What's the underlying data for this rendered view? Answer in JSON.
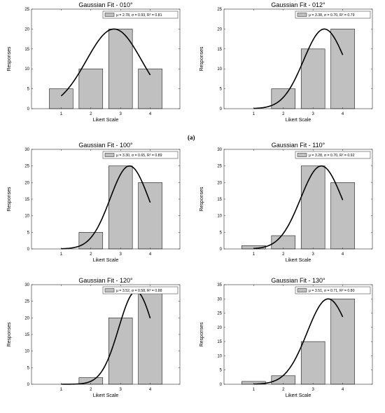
{
  "subfigure_label": "(a)",
  "chart_data": [
    {
      "type": "bar",
      "title": "Gaussian Fit - 010°",
      "xlabel": "Likert Scale",
      "ylabel": "Responses",
      "categories": [
        "1",
        "2",
        "3",
        "4"
      ],
      "values": [
        5,
        10,
        20,
        10
      ],
      "ylim": [
        0,
        25
      ],
      "yticks": [
        "0",
        "5",
        "10",
        "15",
        "20",
        "25"
      ],
      "xlim": [
        0,
        5
      ],
      "legend": "μ = 2.78, σ = 0.93, R² = 0.81",
      "legend_position": "top-right",
      "fit": {
        "mu": 2.78,
        "sigma": 0.93,
        "peak": 20,
        "x_range": [
          1,
          4
        ]
      },
      "bar_color": "#c0c0c0",
      "curve_color": "#000000"
    },
    {
      "type": "bar",
      "title": "Gaussian Fit - 012°",
      "xlabel": "Likert Scale",
      "ylabel": "Responses",
      "categories": [
        "1",
        "2",
        "3",
        "4"
      ],
      "values": [
        0,
        5,
        15,
        20
      ],
      "ylim": [
        0,
        25
      ],
      "yticks": [
        "0",
        "5",
        "10",
        "15",
        "20",
        "25"
      ],
      "xlim": [
        0,
        5
      ],
      "legend": "μ = 3.38, σ = 0.70, R² = 0.79",
      "legend_position": "top-right",
      "fit": {
        "mu": 3.38,
        "sigma": 0.7,
        "peak": 20,
        "x_range": [
          1,
          4
        ]
      },
      "bar_color": "#c0c0c0",
      "curve_color": "#000000"
    },
    {
      "type": "bar",
      "title": "Gaussian Fit - 100°",
      "xlabel": "Likert Scale",
      "ylabel": "Responses",
      "categories": [
        "1",
        "2",
        "3",
        "4"
      ],
      "values": [
        0,
        5,
        25,
        20
      ],
      "ylim": [
        0,
        30
      ],
      "yticks": [
        "0",
        "5",
        "10",
        "15",
        "20",
        "25",
        "30"
      ],
      "xlim": [
        0,
        5
      ],
      "legend": "μ = 3.30, σ = 0.65, R² = 0.89",
      "legend_position": "top-right",
      "fit": {
        "mu": 3.3,
        "sigma": 0.65,
        "peak": 25,
        "x_range": [
          1,
          4
        ]
      },
      "bar_color": "#c0c0c0",
      "curve_color": "#000000"
    },
    {
      "type": "bar",
      "title": "Gaussian Fit - 110°",
      "xlabel": "Likert Scale",
      "ylabel": "Responses",
      "categories": [
        "1",
        "2",
        "3",
        "4"
      ],
      "values": [
        1,
        4,
        25,
        20
      ],
      "ylim": [
        0,
        30
      ],
      "yticks": [
        "0",
        "5",
        "10",
        "15",
        "20",
        "25",
        "30"
      ],
      "xlim": [
        0,
        5
      ],
      "legend": "μ = 3.28, σ = 0.70, R² = 0.92",
      "legend_position": "top-right",
      "fit": {
        "mu": 3.28,
        "sigma": 0.7,
        "peak": 25,
        "x_range": [
          1,
          4
        ]
      },
      "bar_color": "#c0c0c0",
      "curve_color": "#000000"
    },
    {
      "type": "bar",
      "title": "Gaussian Fit - 120°",
      "xlabel": "Likert Scale",
      "ylabel": "Responses",
      "categories": [
        "1",
        "2",
        "3",
        "4"
      ],
      "values": [
        0,
        2,
        20,
        28
      ],
      "ylim": [
        0,
        30
      ],
      "yticks": [
        "0",
        "5",
        "10",
        "15",
        "20",
        "25",
        "30"
      ],
      "xlim": [
        0,
        5
      ],
      "legend": "μ = 3.52, σ = 0.58, R² = 0.88",
      "legend_position": "top-right",
      "fit": {
        "mu": 3.52,
        "sigma": 0.58,
        "peak": 28,
        "x_range": [
          1,
          4
        ]
      },
      "bar_color": "#c0c0c0",
      "curve_color": "#000000"
    },
    {
      "type": "bar",
      "title": "Gaussian Fit - 130°",
      "xlabel": "Likert Scale",
      "ylabel": "Responses",
      "categories": [
        "1",
        "2",
        "3",
        "4"
      ],
      "values": [
        1,
        3,
        15,
        30
      ],
      "ylim": [
        0,
        35
      ],
      "yticks": [
        "0",
        "5",
        "10",
        "15",
        "20",
        "25",
        "30",
        "35"
      ],
      "xlim": [
        0,
        5
      ],
      "legend": "μ = 3.51, σ = 0.71, R² = 0.80",
      "legend_position": "top-right",
      "fit": {
        "mu": 3.51,
        "sigma": 0.71,
        "peak": 30,
        "x_range": [
          1,
          4
        ]
      },
      "bar_color": "#c0c0c0",
      "curve_color": "#000000"
    }
  ]
}
